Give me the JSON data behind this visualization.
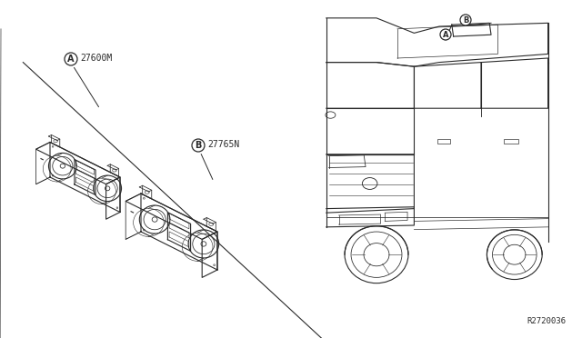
{
  "bg_color": "#ffffff",
  "line_color": "#2a2a2a",
  "fig_width": 6.4,
  "fig_height": 3.72,
  "dpi": 100,
  "part_label_A": "27600M",
  "part_label_B": "27765N",
  "ref_code": "R2720036"
}
